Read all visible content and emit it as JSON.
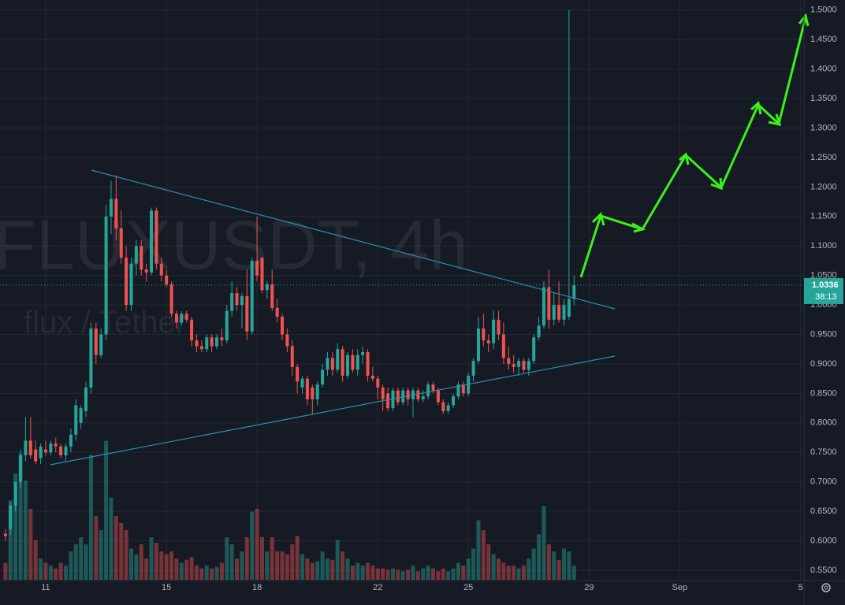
{
  "chart_data": {
    "type": "candlestick",
    "title": "FLUXUSDT, 4h",
    "subtitle": "flux / Tether",
    "up_color": "#26a69a",
    "down_color": "#ef5350",
    "grid": true,
    "ylim": [
      0.534,
      1.517
    ],
    "yticks": [
      {
        "value": 1.5,
        "label": "1.5000"
      },
      {
        "value": 1.45,
        "label": "1.4500"
      },
      {
        "value": 1.4,
        "label": "1.4000"
      },
      {
        "value": 1.35,
        "label": "1.3500"
      },
      {
        "value": 1.3,
        "label": "1.3000"
      },
      {
        "value": 1.25,
        "label": "1.2500"
      },
      {
        "value": 1.2,
        "label": "1.2000"
      },
      {
        "value": 1.15,
        "label": "1.1500"
      },
      {
        "value": 1.1,
        "label": "1.1000"
      },
      {
        "value": 1.05,
        "label": "1.0500"
      },
      {
        "value": 1.0,
        "label": "1.0000"
      },
      {
        "value": 0.95,
        "label": "0.9500"
      },
      {
        "value": 0.9,
        "label": "0.9000"
      },
      {
        "value": 0.85,
        "label": "0.8500"
      },
      {
        "value": 0.8,
        "label": "0.8000"
      },
      {
        "value": 0.75,
        "label": "0.7500"
      },
      {
        "value": 0.7,
        "label": "0.7000"
      },
      {
        "value": 0.65,
        "label": "0.6500"
      },
      {
        "value": 0.6,
        "label": "0.6000"
      },
      {
        "value": 0.55,
        "label": "0.5500"
      }
    ],
    "xlim": [
      -1.08,
      158.7
    ],
    "xticks": [
      {
        "value": 8,
        "label": "11"
      },
      {
        "value": 32,
        "label": "15"
      },
      {
        "value": 50,
        "label": "18"
      },
      {
        "value": 74,
        "label": "22"
      },
      {
        "value": 92,
        "label": "25"
      },
      {
        "value": 116,
        "label": "29"
      },
      {
        "value": 134,
        "label": "Sep"
      },
      {
        "value": 158,
        "label": "5"
      }
    ],
    "vlim": [
      0,
      100
    ],
    "last_price": {
      "value": 1.0336,
      "label": "1.0336"
    },
    "countdown": "38:13",
    "ohlc": [
      [
        0.612,
        0.62,
        0.6,
        0.608
      ],
      [
        0.62,
        0.665,
        0.61,
        0.66
      ],
      [
        0.66,
        0.7,
        0.65,
        0.7
      ],
      [
        0.7,
        0.755,
        0.69,
        0.745
      ],
      [
        0.745,
        0.81,
        0.735,
        0.77
      ],
      [
        0.77,
        0.81,
        0.74,
        0.745
      ],
      [
        0.755,
        0.77,
        0.73,
        0.735
      ],
      [
        0.74,
        0.765,
        0.73,
        0.76
      ],
      [
        0.755,
        0.77,
        0.745,
        0.75
      ],
      [
        0.75,
        0.77,
        0.745,
        0.765
      ],
      [
        0.765,
        0.775,
        0.75,
        0.76
      ],
      [
        0.76,
        0.765,
        0.74,
        0.745
      ],
      [
        0.745,
        0.765,
        0.735,
        0.76
      ],
      [
        0.76,
        0.79,
        0.75,
        0.78
      ],
      [
        0.78,
        0.84,
        0.77,
        0.83
      ],
      [
        0.8,
        0.83,
        0.79,
        0.825
      ],
      [
        0.82,
        0.87,
        0.81,
        0.86
      ],
      [
        0.86,
        0.97,
        0.85,
        0.96
      ],
      [
        0.96,
        0.97,
        0.9,
        0.915
      ],
      [
        0.915,
        0.96,
        0.91,
        0.95
      ],
      [
        0.95,
        1.17,
        0.94,
        1.15
      ],
      [
        1.15,
        1.21,
        1.12,
        1.18
      ],
      [
        1.18,
        1.22,
        1.11,
        1.13
      ],
      [
        1.13,
        1.16,
        1.07,
        1.08
      ],
      [
        1.08,
        1.1,
        0.99,
        1.0
      ],
      [
        1.0,
        1.08,
        0.99,
        1.07
      ],
      [
        1.07,
        1.11,
        1.05,
        1.1
      ],
      [
        1.1,
        1.11,
        1.05,
        1.06
      ],
      [
        1.06,
        1.07,
        1.04,
        1.055
      ],
      [
        1.055,
        1.165,
        1.05,
        1.16
      ],
      [
        1.16,
        1.165,
        1.06,
        1.07
      ],
      [
        1.07,
        1.08,
        1.04,
        1.05
      ],
      [
        1.05,
        1.06,
        1.03,
        1.035
      ],
      [
        1.035,
        1.04,
        0.98,
        0.985
      ],
      [
        0.985,
        0.99,
        0.96,
        0.97
      ],
      [
        0.97,
        0.99,
        0.965,
        0.985
      ],
      [
        0.985,
        0.99,
        0.97,
        0.975
      ],
      [
        0.975,
        0.98,
        0.93,
        0.94
      ],
      [
        0.94,
        0.95,
        0.92,
        0.93
      ],
      [
        0.93,
        0.94,
        0.92,
        0.925
      ],
      [
        0.925,
        0.95,
        0.92,
        0.945
      ],
      [
        0.945,
        0.95,
        0.92,
        0.93
      ],
      [
        0.93,
        0.95,
        0.925,
        0.945
      ],
      [
        0.945,
        0.96,
        0.93,
        0.94
      ],
      [
        0.94,
        1.0,
        0.935,
        0.99
      ],
      [
        0.99,
        1.04,
        0.98,
        1.02
      ],
      [
        1.02,
        1.03,
        0.99,
        1.0
      ],
      [
        1.0,
        1.02,
        0.96,
        1.015
      ],
      [
        1.015,
        1.06,
        0.94,
        0.955
      ],
      [
        0.955,
        1.08,
        0.95,
        1.075
      ],
      [
        1.075,
        1.15,
        1.04,
        1.05
      ],
      [
        1.08,
        1.08,
        1.02,
        1.025
      ],
      [
        1.025,
        1.04,
        1.01,
        1.035
      ],
      [
        1.035,
        1.06,
        0.99,
        0.995
      ],
      [
        0.995,
        1.01,
        0.97,
        0.98
      ],
      [
        0.98,
        0.985,
        0.94,
        0.95
      ],
      [
        0.95,
        0.96,
        0.92,
        0.93
      ],
      [
        0.93,
        0.94,
        0.88,
        0.895
      ],
      [
        0.895,
        0.9,
        0.85,
        0.87
      ],
      [
        0.86,
        0.88,
        0.85,
        0.875
      ],
      [
        0.875,
        0.88,
        0.83,
        0.84
      ],
      [
        0.86,
        0.865,
        0.815,
        0.84
      ],
      [
        0.84,
        0.87,
        0.83,
        0.865
      ],
      [
        0.865,
        0.9,
        0.86,
        0.89
      ],
      [
        0.89,
        0.92,
        0.88,
        0.91
      ],
      [
        0.91,
        0.92,
        0.88,
        0.89
      ],
      [
        0.89,
        0.935,
        0.885,
        0.925
      ],
      [
        0.925,
        0.93,
        0.87,
        0.88
      ],
      [
        0.88,
        0.92,
        0.875,
        0.915
      ],
      [
        0.915,
        0.925,
        0.885,
        0.89
      ],
      [
        0.89,
        0.925,
        0.88,
        0.915
      ],
      [
        0.915,
        0.93,
        0.9,
        0.92
      ],
      [
        0.92,
        0.925,
        0.87,
        0.88
      ],
      [
        0.88,
        0.895,
        0.87,
        0.875
      ],
      [
        0.875,
        0.88,
        0.84,
        0.86
      ],
      [
        0.86,
        0.865,
        0.82,
        0.84
      ],
      [
        0.85,
        0.86,
        0.82,
        0.825
      ],
      [
        0.825,
        0.86,
        0.82,
        0.855
      ],
      [
        0.855,
        0.86,
        0.83,
        0.835
      ],
      [
        0.835,
        0.86,
        0.83,
        0.855
      ],
      [
        0.855,
        0.86,
        0.83,
        0.84
      ],
      [
        0.84,
        0.86,
        0.81,
        0.855
      ],
      [
        0.855,
        0.86,
        0.835,
        0.84
      ],
      [
        0.84,
        0.855,
        0.835,
        0.845
      ],
      [
        0.845,
        0.87,
        0.84,
        0.865
      ],
      [
        0.865,
        0.87,
        0.85,
        0.855
      ],
      [
        0.855,
        0.86,
        0.83,
        0.835
      ],
      [
        0.835,
        0.84,
        0.815,
        0.82
      ],
      [
        0.82,
        0.835,
        0.815,
        0.83
      ],
      [
        0.83,
        0.85,
        0.825,
        0.845
      ],
      [
        0.845,
        0.87,
        0.84,
        0.865
      ],
      [
        0.865,
        0.87,
        0.845,
        0.85
      ],
      [
        0.85,
        0.885,
        0.845,
        0.88
      ],
      [
        0.88,
        0.91,
        0.87,
        0.905
      ],
      [
        0.905,
        0.98,
        0.9,
        0.96
      ],
      [
        0.96,
        0.985,
        0.93,
        0.94
      ],
      [
        0.94,
        0.95,
        0.92,
        0.935
      ],
      [
        0.935,
        0.99,
        0.925,
        0.975
      ],
      [
        0.975,
        0.99,
        0.94,
        0.95
      ],
      [
        0.95,
        0.97,
        0.9,
        0.91
      ],
      [
        0.91,
        0.93,
        0.89,
        0.9
      ],
      [
        0.9,
        0.915,
        0.885,
        0.895
      ],
      [
        0.895,
        0.91,
        0.88,
        0.905
      ],
      [
        0.905,
        0.91,
        0.885,
        0.89
      ],
      [
        0.89,
        0.91,
        0.88,
        0.905
      ],
      [
        0.905,
        0.95,
        0.9,
        0.945
      ],
      [
        0.945,
        0.98,
        0.94,
        0.965
      ],
      [
        0.965,
        1.04,
        0.96,
        1.03
      ],
      [
        1.03,
        1.06,
        0.96,
        0.975
      ],
      [
        0.975,
        1.02,
        0.965,
        1.0
      ],
      [
        1.0,
        1.04,
        0.97,
        0.975
      ],
      [
        0.975,
        1.01,
        0.965,
        1.0
      ],
      [
        0.98,
        1.5,
        0.975,
        1.01
      ],
      [
        1.01,
        1.05,
        1.0,
        1.0336
      ]
    ],
    "volume": [
      12,
      56,
      75,
      89,
      70,
      50,
      28,
      15,
      12,
      10,
      8,
      12,
      10,
      20,
      25,
      30,
      25,
      88,
      45,
      35,
      98,
      58,
      45,
      40,
      35,
      22,
      18,
      25,
      15,
      30,
      26,
      20,
      18,
      20,
      15,
      12,
      14,
      16,
      10,
      8,
      10,
      8,
      9,
      12,
      30,
      25,
      15,
      20,
      30,
      48,
      50,
      30,
      20,
      30,
      20,
      20,
      18,
      25,
      31,
      18,
      15,
      12,
      13,
      20,
      15,
      14,
      28,
      20,
      15,
      10,
      12,
      10,
      12,
      10,
      8,
      8,
      7,
      8,
      7,
      6,
      7,
      10,
      6,
      8,
      10,
      8,
      6,
      8,
      6,
      8,
      12,
      10,
      15,
      22,
      42,
      35,
      25,
      18,
      15,
      12,
      10,
      10,
      8,
      10,
      15,
      22,
      32,
      52,
      25,
      20,
      14,
      22,
      20,
      10
    ]
  }
}
